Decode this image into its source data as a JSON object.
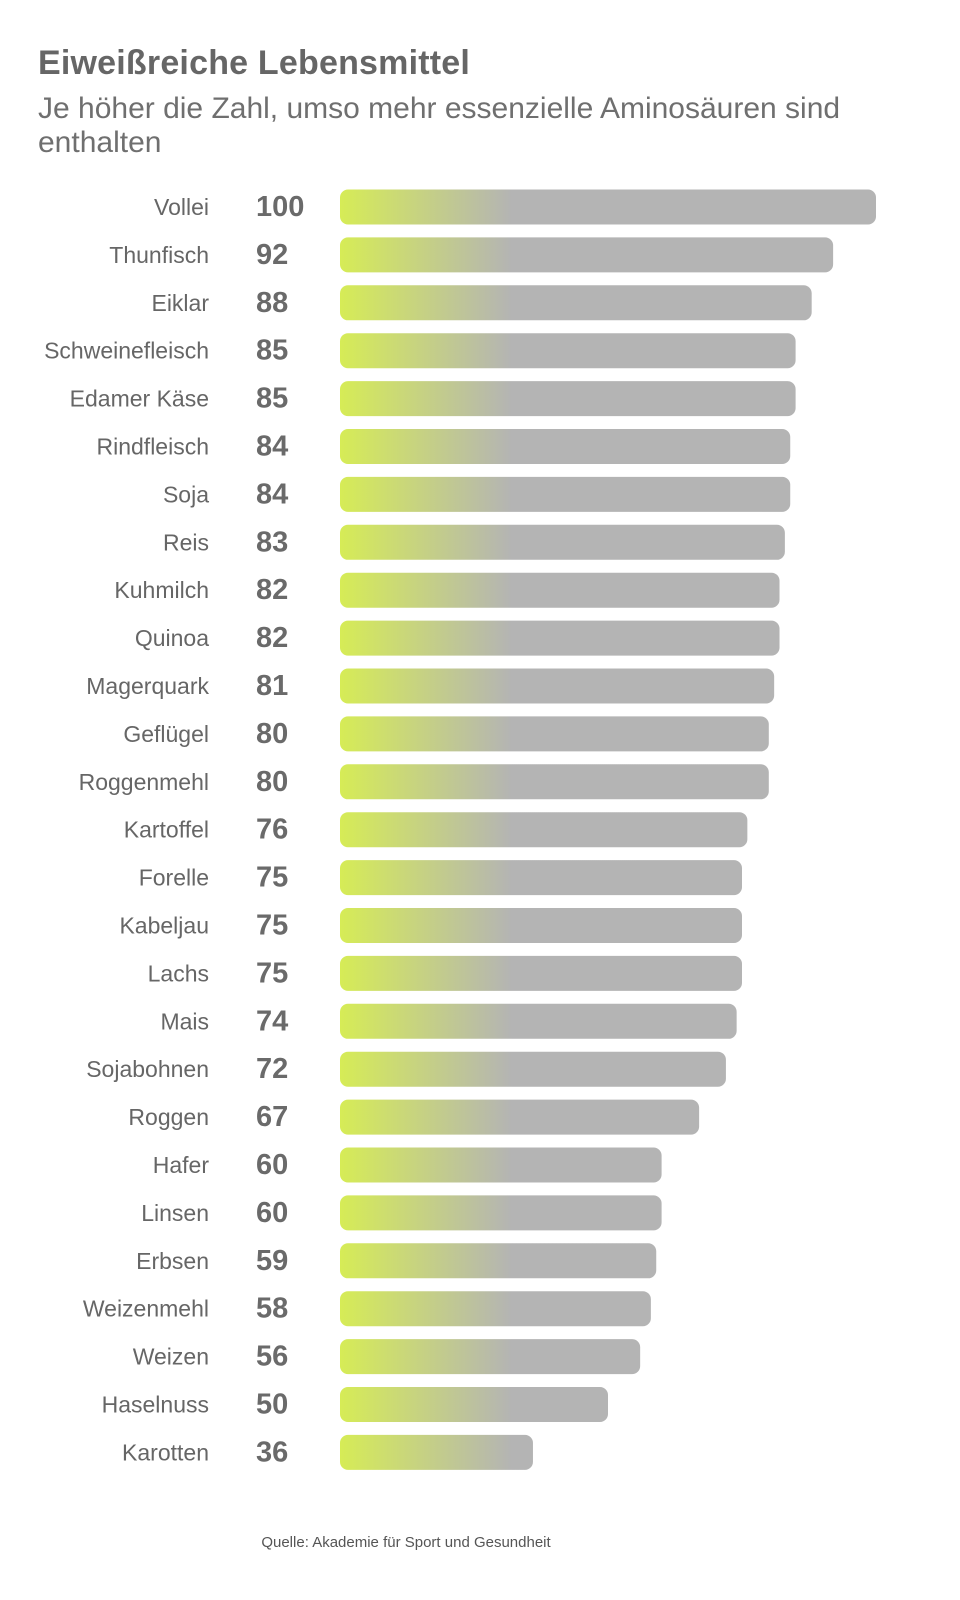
{
  "chart_data": {
    "type": "bar",
    "orientation": "horizontal",
    "title": "Eiweißreiche Lebensmittel",
    "subtitle": "Je höher die Zahl, umso mehr essenzielle Aminosäuren sind enthalten",
    "categories": [
      "Vollei",
      "Thunfisch",
      "Eiklar",
      "Schweinefleisch",
      "Edamer Käse",
      "Rindfleisch",
      "Soja",
      "Reis",
      "Kuhmilch",
      "Quinoa",
      "Magerquark",
      "Geflügel",
      "Roggenmehl",
      "Kartoffel",
      "Forelle",
      "Kabeljau",
      "Lachs",
      "Mais",
      "Sojabohnen",
      "Roggen",
      "Hafer",
      "Linsen",
      "Erbsen",
      "Weizenmehl",
      "Weizen",
      "Haselnuss",
      "Karotten"
    ],
    "values": [
      100,
      92,
      88,
      85,
      85,
      84,
      84,
      83,
      82,
      82,
      81,
      80,
      80,
      76,
      75,
      75,
      75,
      74,
      72,
      67,
      60,
      60,
      59,
      58,
      56,
      50,
      36
    ],
    "value_labels": [
      "100",
      "92",
      "88",
      "85",
      "85",
      "84",
      "84",
      "83",
      "82",
      "82",
      "81",
      "80",
      "80",
      "76",
      "75",
      "75",
      "75",
      "74",
      "72",
      "67",
      "60",
      "60",
      "59",
      "58",
      "56",
      "50",
      "36"
    ],
    "xlim": [
      0,
      100
    ],
    "grid": false,
    "legend": "none",
    "colors": {
      "bar_start": "#d6ec56",
      "bar_end": "#b4b4b4",
      "label": "#666666",
      "value": "#6a6a6a"
    }
  },
  "source": "Quelle: Akademie für Sport und Gesundheit"
}
